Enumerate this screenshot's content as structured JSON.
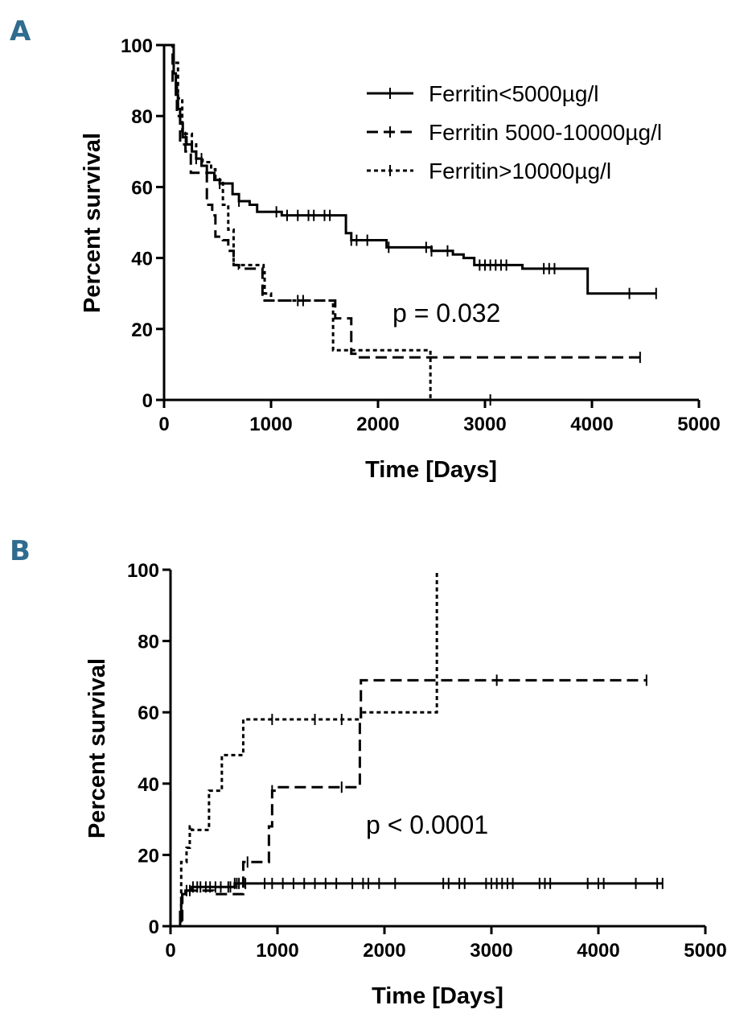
{
  "chart_data": [
    {
      "panel_label": "A",
      "type": "line",
      "subtype": "kaplan-meier-step",
      "xlabel": "Time [Days]",
      "ylabel": "Percent survival",
      "xlim": [
        0,
        5000
      ],
      "ylim": [
        0,
        100
      ],
      "xticks": [
        0,
        1000,
        2000,
        3000,
        4000,
        5000
      ],
      "yticks": [
        0,
        20,
        40,
        60,
        80,
        100
      ],
      "grid": false,
      "legend_position": "top-right",
      "annotation": "p = 0.032",
      "series": [
        {
          "name": "Ferritin<5000µg/l",
          "style": "solid",
          "steps": [
            [
              0,
              100
            ],
            [
              60,
              100
            ],
            [
              90,
              92
            ],
            [
              110,
              86
            ],
            [
              130,
              82
            ],
            [
              150,
              78
            ],
            [
              175,
              74
            ],
            [
              210,
              72
            ],
            [
              260,
              70
            ],
            [
              300,
              68
            ],
            [
              350,
              66
            ],
            [
              400,
              64
            ],
            [
              470,
              62
            ],
            [
              520,
              61
            ],
            [
              580,
              61
            ],
            [
              640,
              58
            ],
            [
              700,
              56
            ],
            [
              800,
              55
            ],
            [
              870,
              53
            ],
            [
              1000,
              53
            ],
            [
              1100,
              52
            ],
            [
              1200,
              52
            ],
            [
              1680,
              52
            ],
            [
              1700,
              47
            ],
            [
              1750,
              45
            ],
            [
              1900,
              45
            ],
            [
              2080,
              43
            ],
            [
              2500,
              42
            ],
            [
              2700,
              41
            ],
            [
              2800,
              40
            ],
            [
              2900,
              38
            ],
            [
              3200,
              38
            ],
            [
              3350,
              37
            ],
            [
              3950,
              37
            ],
            [
              3960,
              30
            ],
            [
              4600,
              30
            ]
          ],
          "censor": [
            200,
            300,
            520,
            700,
            1050,
            1150,
            1250,
            1350,
            1400,
            1500,
            1550,
            1750,
            1800,
            1900,
            2100,
            2450,
            2500,
            2650,
            2950,
            3000,
            3050,
            3100,
            3150,
            3200,
            3550,
            3600,
            3650,
            4350,
            4600
          ]
        },
        {
          "name": "Ferritin 5000-10000µg/l",
          "style": "dashed",
          "steps": [
            [
              0,
              100
            ],
            [
              60,
              100
            ],
            [
              80,
              90
            ],
            [
              120,
              80
            ],
            [
              150,
              72
            ],
            [
              200,
              70
            ],
            [
              250,
              64
            ],
            [
              350,
              64
            ],
            [
              400,
              55
            ],
            [
              450,
              52
            ],
            [
              480,
              46
            ],
            [
              550,
              45
            ],
            [
              600,
              42
            ],
            [
              650,
              38
            ],
            [
              700,
              37
            ],
            [
              900,
              37
            ],
            [
              920,
              28
            ],
            [
              1000,
              28
            ],
            [
              1580,
              28
            ],
            [
              1600,
              23
            ],
            [
              1700,
              23
            ],
            [
              1750,
              13
            ],
            [
              1800,
              12
            ],
            [
              4450,
              12
            ]
          ],
          "censor": [
            1250,
            1300,
            4450
          ]
        },
        {
          "name": "Ferritin>10000µg/l",
          "style": "dotted",
          "steps": [
            [
              0,
              100
            ],
            [
              50,
              100
            ],
            [
              90,
              95
            ],
            [
              130,
              85
            ],
            [
              170,
              75
            ],
            [
              260,
              72
            ],
            [
              300,
              68
            ],
            [
              360,
              67
            ],
            [
              440,
              65
            ],
            [
              480,
              62
            ],
            [
              550,
              55
            ],
            [
              600,
              48
            ],
            [
              650,
              38
            ],
            [
              700,
              38
            ],
            [
              930,
              36
            ],
            [
              940,
              30
            ],
            [
              1000,
              28
            ],
            [
              1500,
              28
            ],
            [
              1580,
              14
            ],
            [
              2480,
              14
            ],
            [
              2490,
              0
            ]
          ],
          "censor": [
            350,
            3050
          ]
        }
      ]
    },
    {
      "panel_label": "B",
      "type": "line",
      "subtype": "kaplan-meier-step",
      "xlabel": "Time [Days]",
      "ylabel": "Percent survival",
      "xlim": [
        0,
        5000
      ],
      "ylim": [
        0,
        100
      ],
      "xticks": [
        0,
        1000,
        2000,
        3000,
        4000,
        5000
      ],
      "yticks": [
        0,
        20,
        40,
        60,
        80,
        100
      ],
      "grid": false,
      "annotation": "p < 0.0001",
      "series": [
        {
          "name": "Ferritin<5000µg/l",
          "style": "solid",
          "steps": [
            [
              0,
              0
            ],
            [
              70,
              0
            ],
            [
              90,
              4
            ],
            [
              100,
              7
            ],
            [
              110,
              9
            ],
            [
              140,
              10
            ],
            [
              200,
              11
            ],
            [
              300,
              11
            ],
            [
              600,
              12
            ],
            [
              4600,
              12
            ]
          ],
          "censor": [
            150,
            180,
            210,
            250,
            280,
            330,
            370,
            420,
            470,
            540,
            560,
            600,
            620,
            640,
            700,
            880,
            950,
            1050,
            1150,
            1250,
            1350,
            1450,
            1550,
            1700,
            1800,
            1850,
            1950,
            2100,
            2550,
            2600,
            2700,
            2750,
            2950,
            3000,
            3050,
            3100,
            3150,
            3200,
            3450,
            3500,
            3550,
            3900,
            4000,
            4050,
            4350,
            4550,
            4600
          ]
        },
        {
          "name": "Ferritin 5000-10000µg/l",
          "style": "dashed",
          "steps": [
            [
              0,
              0
            ],
            [
              80,
              0
            ],
            [
              110,
              10
            ],
            [
              200,
              10
            ],
            [
              350,
              10
            ],
            [
              400,
              9
            ],
            [
              650,
              9
            ],
            [
              680,
              18
            ],
            [
              900,
              18
            ],
            [
              920,
              28
            ],
            [
              950,
              38
            ],
            [
              1000,
              39
            ],
            [
              1750,
              39
            ],
            [
              1770,
              58
            ],
            [
              1780,
              69
            ],
            [
              4450,
              69
            ]
          ],
          "censor": [
            720,
            950,
            1600,
            3050,
            4450
          ]
        },
        {
          "name": "Ferritin>10000µg/l",
          "style": "dotted",
          "steps": [
            [
              0,
              0
            ],
            [
              80,
              0
            ],
            [
              100,
              18
            ],
            [
              150,
              22
            ],
            [
              180,
              28
            ],
            [
              200,
              27
            ],
            [
              300,
              27
            ],
            [
              360,
              38
            ],
            [
              450,
              38
            ],
            [
              480,
              48
            ],
            [
              650,
              48
            ],
            [
              680,
              58
            ],
            [
              1000,
              58
            ],
            [
              1770,
              58
            ],
            [
              1780,
              60
            ],
            [
              2480,
              60
            ],
            [
              2490,
              100
            ]
          ],
          "censor": [
            950,
            1350,
            1600
          ]
        }
      ]
    }
  ]
}
